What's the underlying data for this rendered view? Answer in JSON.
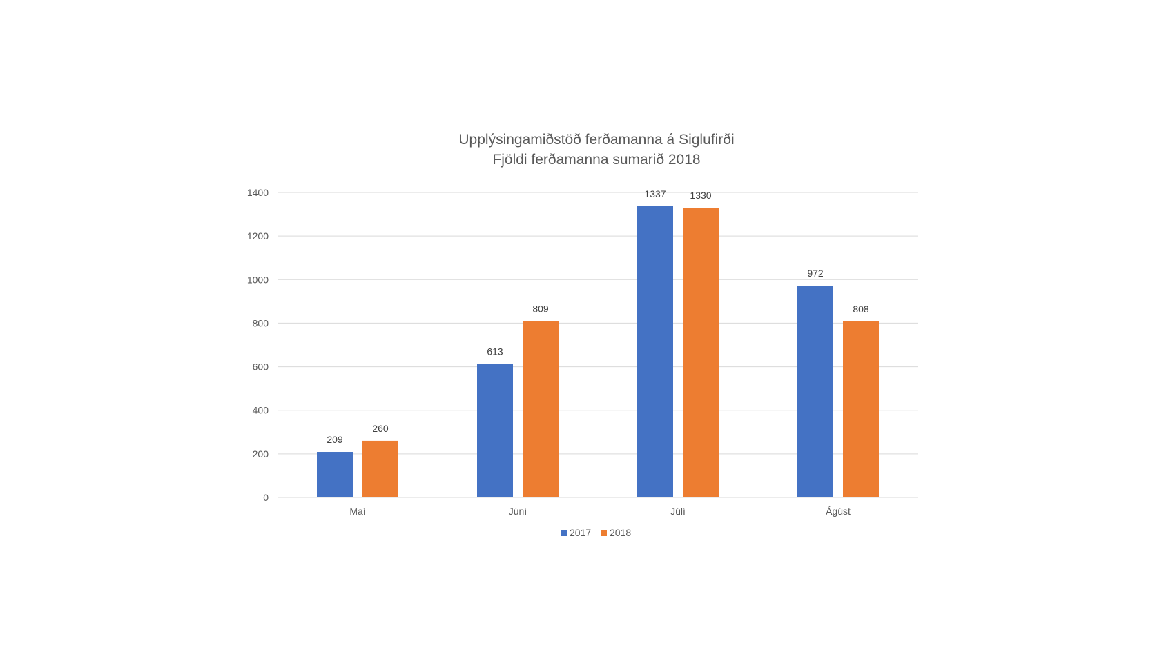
{
  "chart_data": {
    "type": "bar",
    "title": "Upplýsingamiðstöð ferðamanna á Siglufirði",
    "subtitle": "Fjöldi ferðamanna sumarið 2018",
    "categories": [
      "Maí",
      "Júní",
      "Júlí",
      "Ágúst"
    ],
    "series": [
      {
        "name": "2017",
        "values": [
          209,
          613,
          1337,
          972
        ],
        "color": "#4472C4"
      },
      {
        "name": "2018",
        "values": [
          260,
          809,
          1330,
          808
        ],
        "color": "#ED7D31"
      }
    ],
    "ylim": [
      0,
      1400
    ],
    "yticks": [
      0,
      200,
      400,
      600,
      800,
      1000,
      1200,
      1400
    ],
    "grid": true,
    "legend_position": "bottom",
    "data_labels": true
  }
}
